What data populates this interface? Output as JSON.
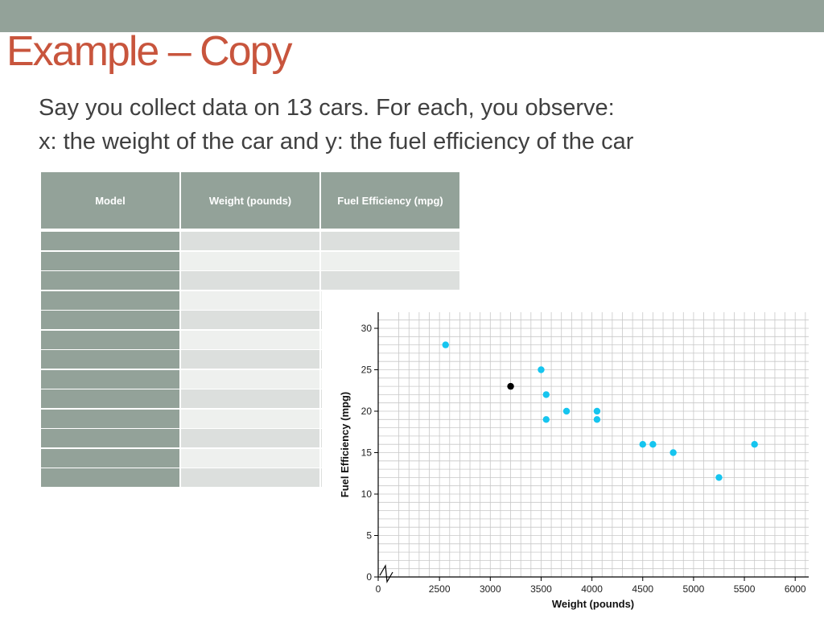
{
  "slide": {
    "title": "Example – Copy",
    "body_lines": [
      "Say you collect data on 13 cars. For each, you observe:",
      "x: the weight of the car and y: the fuel efficiency of the car"
    ]
  },
  "table": {
    "headers": [
      "Model",
      "Weight (pounds)",
      "Fuel Efficiency (mpg)"
    ],
    "row_count": 13
  },
  "colors": {
    "accent_bar": "#93a299",
    "title": "#c8553d",
    "point": "#16c5ef",
    "highlight_point": "#000000"
  },
  "chart_data": {
    "type": "scatter",
    "title": "",
    "xlabel": "Weight (pounds)",
    "ylabel": "Fuel Efficiency (mpg)",
    "xlim": [
      0,
      6000
    ],
    "ylim": [
      0,
      30
    ],
    "x_axis_break": true,
    "x_ticks": [
      0,
      2500,
      3000,
      3500,
      4000,
      4500,
      5000,
      5500,
      6000
    ],
    "y_ticks": [
      0,
      5,
      10,
      15,
      20,
      25,
      30
    ],
    "grid": true,
    "points": [
      {
        "x": 2560,
        "y": 28
      },
      {
        "x": 3200,
        "y": 23,
        "highlight": true
      },
      {
        "x": 3500,
        "y": 25
      },
      {
        "x": 3550,
        "y": 22
      },
      {
        "x": 3550,
        "y": 19
      },
      {
        "x": 3750,
        "y": 20
      },
      {
        "x": 4050,
        "y": 20
      },
      {
        "x": 4050,
        "y": 19
      },
      {
        "x": 4500,
        "y": 16
      },
      {
        "x": 4600,
        "y": 16
      },
      {
        "x": 4800,
        "y": 15
      },
      {
        "x": 5250,
        "y": 12
      },
      {
        "x": 5600,
        "y": 16
      }
    ]
  }
}
